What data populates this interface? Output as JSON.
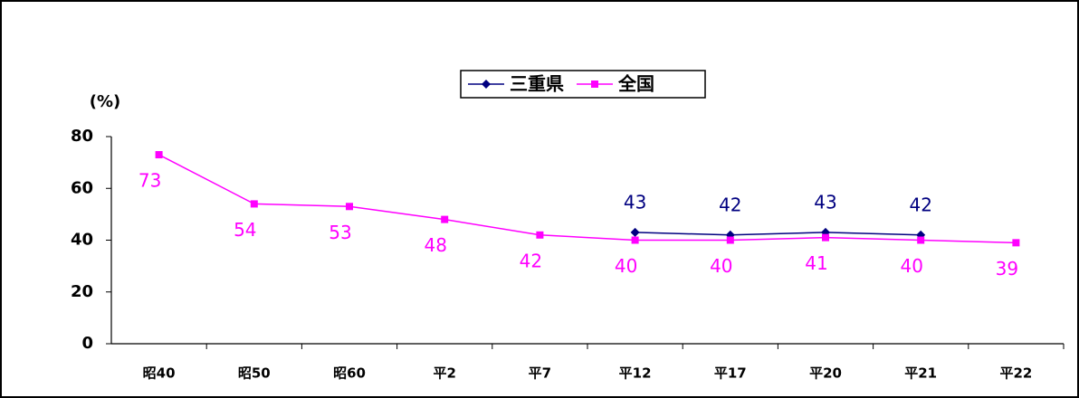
{
  "chart_data": {
    "type": "line",
    "y_label": "(%)",
    "categories": [
      "昭40",
      "昭50",
      "昭60",
      "平2",
      "平7",
      "平12",
      "平17",
      "平20",
      "平21",
      "平22"
    ],
    "series": [
      {
        "name": "三重県",
        "color": "#000080",
        "marker": "diamond",
        "values": [
          null,
          null,
          null,
          null,
          null,
          43,
          42,
          43,
          42,
          null
        ]
      },
      {
        "name": "全国",
        "color": "#ff00ff",
        "marker": "square",
        "values": [
          73,
          54,
          53,
          48,
          42,
          40,
          40,
          41,
          40,
          39
        ]
      }
    ],
    "ylim": [
      0,
      80
    ],
    "yticks": [
      0,
      20,
      40,
      60,
      80
    ],
    "grid": false,
    "legend": "top"
  }
}
